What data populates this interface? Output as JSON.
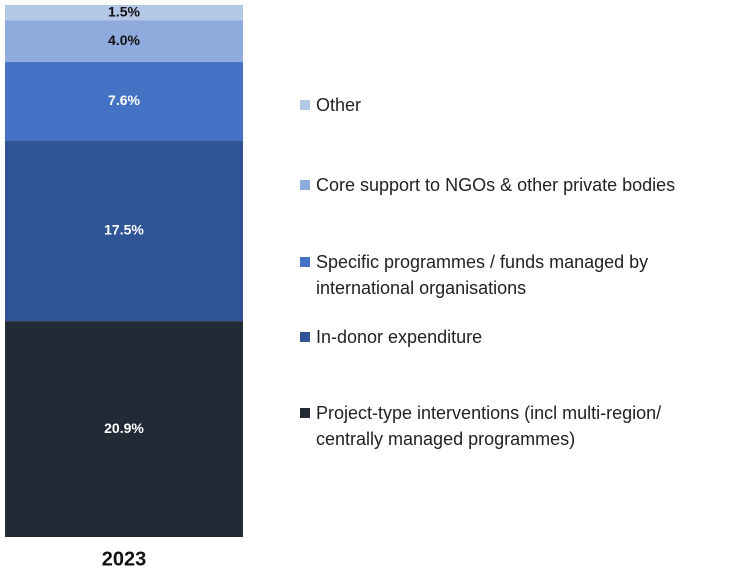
{
  "chart_data": {
    "type": "bar",
    "stacked": true,
    "categories": [
      "2023"
    ],
    "series": [
      {
        "name": "Project-type interventions (incl multi-region/ centrally managed programmes)",
        "color": "#222a35",
        "values": [
          20.9
        ],
        "value_labels": [
          "20.9%"
        ]
      },
      {
        "name": "In-donor expenditure",
        "color": "#2f5597",
        "values": [
          17.5
        ],
        "value_labels": [
          "17.5%"
        ]
      },
      {
        "name": "Specific programmes / funds managed by international organisations",
        "color": "#4472c4",
        "values": [
          7.6
        ],
        "value_labels": [
          "7.6%"
        ]
      },
      {
        "name": "Core support to NGOs & other private bodies",
        "color": "#8faadc",
        "values": [
          4.0
        ],
        "value_labels": [
          "4.0%"
        ]
      },
      {
        "name": "Other",
        "color": "#b4c7e7",
        "values": [
          1.5
        ],
        "value_labels": [
          "1.5%"
        ]
      }
    ],
    "legend": "right"
  }
}
